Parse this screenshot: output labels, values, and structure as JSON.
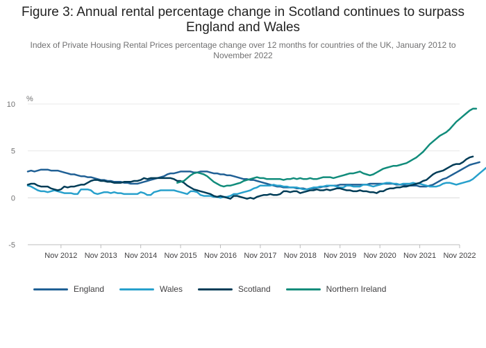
{
  "chart_data": {
    "type": "line",
    "title": "Figure 3: Annual rental percentage change in Scotland continues to surpass England and Wales",
    "subtitle": "Index of Private Housing Rental Prices percentage change over 12 months for countries of the UK, January 2012 to November 2022",
    "ylabel": "%",
    "ylim": [
      -5,
      10
    ],
    "yticks": [
      -5,
      0,
      5,
      10
    ],
    "x_start": "Jan 2012",
    "x_end": "Nov 2022",
    "xticks": [
      "Nov 2012",
      "Nov 2013",
      "Nov 2014",
      "Nov 2015",
      "Nov 2016",
      "Nov 2017",
      "Nov 2018",
      "Nov 2019",
      "Nov 2020",
      "Nov 2021",
      "Nov 2022"
    ],
    "grid": true,
    "legend_position": "bottom-left",
    "series": [
      {
        "name": "England",
        "color": "#206095",
        "start": "Jan 2012",
        "values": [
          2.8,
          2.9,
          2.8,
          2.9,
          3.0,
          3.0,
          3.0,
          2.9,
          2.9,
          2.9,
          2.8,
          2.7,
          2.6,
          2.5,
          2.5,
          2.4,
          2.3,
          2.3,
          2.2,
          2.2,
          2.1,
          2.0,
          1.9,
          1.9,
          1.8,
          1.8,
          1.7,
          1.7,
          1.7,
          1.6,
          1.6,
          1.5,
          1.5,
          1.5,
          1.6,
          1.7,
          1.8,
          1.9,
          2.0,
          2.1,
          2.2,
          2.3,
          2.5,
          2.6,
          2.6,
          2.7,
          2.8,
          2.8,
          2.8,
          2.8,
          2.7,
          2.7,
          2.8,
          2.8,
          2.8,
          2.7,
          2.6,
          2.6,
          2.5,
          2.5,
          2.4,
          2.4,
          2.3,
          2.2,
          2.1,
          2.0,
          2.0,
          1.9,
          1.9,
          1.8,
          1.7,
          1.6,
          1.5,
          1.4,
          1.3,
          1.2,
          1.2,
          1.1,
          1.1,
          1.1,
          1.1,
          1.0,
          1.0,
          1.0,
          0.9,
          1.0,
          1.0,
          1.1,
          1.1,
          1.2,
          1.2,
          1.3,
          1.3,
          1.3,
          1.4,
          1.4,
          1.4,
          1.4,
          1.4,
          1.4,
          1.4,
          1.4,
          1.4,
          1.5,
          1.5,
          1.5,
          1.5,
          1.5,
          1.5,
          1.5,
          1.5,
          1.4,
          1.4,
          1.4,
          1.3,
          1.3,
          1.3,
          1.3,
          1.2,
          1.2,
          1.2,
          1.3,
          1.4,
          1.6,
          1.8,
          2.0,
          2.1,
          2.3,
          2.5,
          2.7,
          2.9,
          3.1,
          3.3,
          3.5,
          3.6,
          3.7,
          3.8
        ]
      },
      {
        "name": "Wales",
        "color": "#27a0cc",
        "start": "Jan 2012",
        "values": [
          1.3,
          1.2,
          1.0,
          0.8,
          0.7,
          0.7,
          0.6,
          0.7,
          0.8,
          0.7,
          0.6,
          0.5,
          0.5,
          0.5,
          0.4,
          0.4,
          0.9,
          0.9,
          0.9,
          0.8,
          0.5,
          0.4,
          0.5,
          0.6,
          0.6,
          0.5,
          0.6,
          0.5,
          0.5,
          0.4,
          0.4,
          0.4,
          0.4,
          0.4,
          0.6,
          0.5,
          0.3,
          0.3,
          0.6,
          0.7,
          0.8,
          0.8,
          0.8,
          0.8,
          0.8,
          0.7,
          0.6,
          0.5,
          0.4,
          0.7,
          0.7,
          0.6,
          0.3,
          0.2,
          0.2,
          0.2,
          0.1,
          0.1,
          0.0,
          0.1,
          0.1,
          0.2,
          0.4,
          0.4,
          0.5,
          0.6,
          0.7,
          0.8,
          1.0,
          1.1,
          1.3,
          1.3,
          1.3,
          1.3,
          1.4,
          1.3,
          1.3,
          1.2,
          1.2,
          1.1,
          1.1,
          1.1,
          1.0,
          0.9,
          0.9,
          1.0,
          1.1,
          1.1,
          1.2,
          1.2,
          1.3,
          1.3,
          1.3,
          1.2,
          1.1,
          1.1,
          1.3,
          1.3,
          1.2,
          1.2,
          1.2,
          1.4,
          1.4,
          1.3,
          1.2,
          1.3,
          1.4,
          1.5,
          1.6,
          1.6,
          1.5,
          1.5,
          1.4,
          1.5,
          1.5,
          1.5,
          1.6,
          1.5,
          1.5,
          1.4,
          1.3,
          1.2,
          1.2,
          1.2,
          1.3,
          1.5,
          1.6,
          1.6,
          1.5,
          1.4,
          1.5,
          1.6,
          1.7,
          1.8,
          2.0,
          2.3,
          2.6,
          2.9,
          3.2,
          3.1
        ]
      },
      {
        "name": "Scotland",
        "color": "#003c57",
        "start": "Jan 2012",
        "values": [
          1.4,
          1.5,
          1.5,
          1.3,
          1.2,
          1.2,
          1.2,
          1.0,
          0.9,
          0.8,
          0.9,
          1.2,
          1.1,
          1.2,
          1.2,
          1.3,
          1.4,
          1.4,
          1.6,
          1.8,
          1.9,
          1.9,
          1.8,
          1.8,
          1.7,
          1.7,
          1.6,
          1.6,
          1.6,
          1.7,
          1.7,
          1.7,
          1.8,
          1.8,
          1.9,
          2.1,
          2.0,
          2.1,
          2.1,
          2.1,
          2.1,
          2.1,
          2.1,
          2.1,
          2.0,
          1.8,
          1.8,
          1.6,
          1.3,
          1.1,
          0.9,
          0.8,
          0.7,
          0.6,
          0.5,
          0.4,
          0.2,
          0.1,
          0.2,
          0.1,
          0.0,
          -0.1,
          0.2,
          0.2,
          0.1,
          0.0,
          -0.1,
          0.0,
          -0.1,
          0.1,
          0.2,
          0.3,
          0.3,
          0.4,
          0.3,
          0.3,
          0.4,
          0.7,
          0.7,
          0.6,
          0.7,
          0.7,
          0.5,
          0.6,
          0.7,
          0.8,
          0.8,
          0.9,
          0.8,
          0.8,
          0.9,
          0.8,
          0.9,
          1.0,
          1.0,
          0.9,
          0.8,
          0.8,
          0.7,
          0.7,
          0.8,
          0.7,
          0.7,
          0.6,
          0.6,
          0.5,
          0.7,
          0.7,
          0.9,
          1.0,
          1.0,
          1.1,
          1.1,
          1.2,
          1.2,
          1.3,
          1.4,
          1.5,
          1.6,
          1.8,
          1.9,
          2.2,
          2.5,
          2.7,
          2.8,
          2.9,
          3.1,
          3.3,
          3.5,
          3.6,
          3.6,
          3.8,
          4.1,
          4.3,
          4.4
        ]
      },
      {
        "name": "Northern Ireland",
        "color": "#118c7b",
        "start": "Oct 2015",
        "values": [
          1.6,
          1.7,
          1.8,
          2.1,
          2.4,
          2.6,
          2.7,
          2.6,
          2.5,
          2.3,
          2.0,
          1.7,
          1.5,
          1.3,
          1.2,
          1.3,
          1.3,
          1.4,
          1.5,
          1.6,
          1.8,
          1.9,
          2.0,
          2.1,
          2.2,
          2.1,
          2.1,
          2.0,
          2.0,
          2.0,
          2.0,
          2.0,
          1.9,
          2.0,
          2.0,
          2.1,
          2.0,
          2.1,
          2.0,
          2.0,
          2.1,
          2.0,
          2.0,
          2.1,
          2.2,
          2.2,
          2.2,
          2.1,
          2.2,
          2.3,
          2.4,
          2.5,
          2.6,
          2.6,
          2.7,
          2.8,
          2.6,
          2.5,
          2.4,
          2.5,
          2.7,
          2.9,
          3.1,
          3.2,
          3.3,
          3.4,
          3.4,
          3.5,
          3.6,
          3.7,
          3.9,
          4.1,
          4.3,
          4.6,
          4.9,
          5.3,
          5.7,
          6.0,
          6.3,
          6.6,
          6.8,
          7.0,
          7.3,
          7.7,
          8.1,
          8.4,
          8.7,
          9.0,
          9.3,
          9.5,
          9.5
        ]
      }
    ]
  }
}
